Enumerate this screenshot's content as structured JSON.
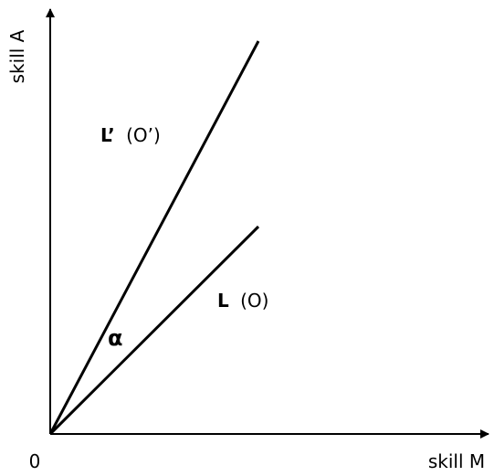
{
  "axes": {
    "y_label": "skill A",
    "x_label": "skill M",
    "origin": "0"
  },
  "lines": [
    {
      "label": "L’",
      "note": "(O’)"
    },
    {
      "label": "L",
      "note": "(O)"
    }
  ],
  "angle": "α"
}
